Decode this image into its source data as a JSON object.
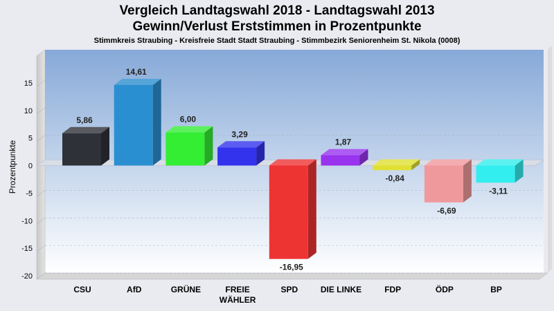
{
  "chart_data": {
    "type": "bar",
    "title_line1": "Vergleich Landtagswahl 2018 - Landtagswahl 2013",
    "title_line2": "Gewinn/Verlust Erststimmen in Prozentpunkte",
    "subtitle": "Stimmkreis Straubing - Kreisfreie Stadt Stadt Straubing - Stimmbezirk Seniorenheim St. Nikola (0008)",
    "ylabel": "Prozentpunkte",
    "xlabel": "",
    "ylim": [
      -20,
      20
    ],
    "yticks": [
      15,
      10,
      5,
      0,
      -5,
      -10,
      -15,
      -20
    ],
    "grid": true,
    "categories": [
      [
        "CSU"
      ],
      [
        "AfD"
      ],
      [
        "GRÜNE"
      ],
      [
        "FREIE",
        "WÄHLER"
      ],
      [
        "SPD"
      ],
      [
        "DIE LINKE"
      ],
      [
        "FDP"
      ],
      [
        "ÖDP"
      ],
      [
        "BP"
      ]
    ],
    "values": [
      5.86,
      14.61,
      6.0,
      3.29,
      -16.95,
      1.87,
      -0.84,
      -6.69,
      -3.11
    ],
    "value_labels": [
      "5,86",
      "14,61",
      "6,00",
      "3,29",
      "-16,95",
      "1,87",
      "-0,84",
      "-6,69",
      "-3,11"
    ],
    "colors": [
      "#2e3138",
      "#2a8fd0",
      "#33ee33",
      "#3333ee",
      "#ee3333",
      "#9933ee",
      "#e0e033",
      "#f0999c",
      "#33eeee"
    ]
  }
}
